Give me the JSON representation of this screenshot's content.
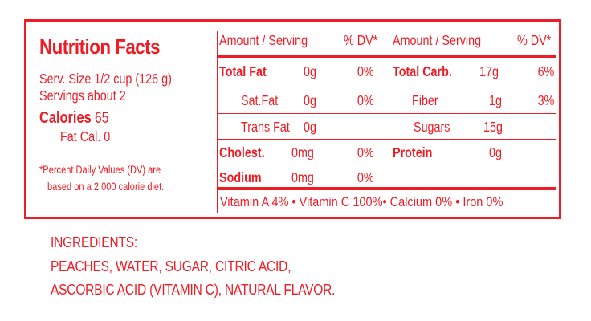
{
  "title": "Nutrition Facts",
  "serving_size": "Serv. Size 1/2 cup (126 g)",
  "servings": "Servings about 2",
  "calories_label": "Calories",
  "calories_value": "65",
  "fat_cal": "Fat Cal. 0",
  "footnote_line1": "*Percent Daily Values (DV) are",
  "footnote_line2": "based on a 2,000 calorie diet.",
  "headers": {
    "amount1": "Amount / Serving",
    "dv1": "% DV*",
    "amount2": "Amount / Serving",
    "dv2": "% DV*"
  },
  "rows": [
    {
      "left_name": "Total Fat",
      "left_amount": "0g",
      "left_dv": "0%",
      "right_name": "Total Carb.",
      "right_amount": "17g",
      "right_dv": "6%"
    },
    {
      "left_name": "Sat.Fat",
      "left_amount": "0g",
      "left_dv": "0%",
      "right_name": "Fiber",
      "right_amount": "1g",
      "right_dv": "3%"
    },
    {
      "left_name": "Trans Fat",
      "left_amount": "0g",
      "left_dv": "",
      "right_name": "Sugars",
      "right_amount": "15g",
      "right_dv": ""
    },
    {
      "left_name": "Cholest.",
      "left_amount": "0mg",
      "left_dv": "0%",
      "right_name": "Protein",
      "right_amount": "0g",
      "right_dv": ""
    },
    {
      "left_name": "Sodium",
      "left_amount": "0mg",
      "left_dv": "0%",
      "right_name": "",
      "right_amount": "",
      "right_dv": ""
    }
  ],
  "vitamins": "Vitamin A 4% • Vitamin C 100%• Calcium 0% • Iron 0%",
  "ingredients": {
    "heading": "INGREDIENTS:",
    "line1": "PEACHES, WATER, SUGAR, CITRIC ACID,",
    "line2": "ASCORBIC ACID (VITAMIN C), NATURAL FLAVOR."
  }
}
